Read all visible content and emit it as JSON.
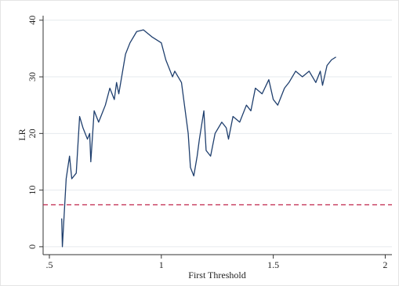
{
  "chart_data": {
    "type": "line",
    "x_label": "First Threshold",
    "y_label": "LR",
    "x": [
      0.555,
      0.558,
      0.575,
      0.59,
      0.6,
      0.62,
      0.635,
      0.65,
      0.67,
      0.68,
      0.685,
      0.7,
      0.72,
      0.75,
      0.77,
      0.79,
      0.8,
      0.81,
      0.84,
      0.86,
      0.89,
      0.92,
      0.96,
      1.0,
      1.02,
      1.05,
      1.06,
      1.09,
      1.1,
      1.12,
      1.13,
      1.145,
      1.16,
      1.17,
      1.19,
      1.2,
      1.22,
      1.24,
      1.27,
      1.29,
      1.3,
      1.32,
      1.35,
      1.38,
      1.4,
      1.42,
      1.45,
      1.48,
      1.5,
      1.52,
      1.55,
      1.57,
      1.6,
      1.63,
      1.66,
      1.69,
      1.71,
      1.72,
      1.74,
      1.76,
      1.78
    ],
    "series": [
      {
        "name": "LR",
        "color": "#1f3f6e",
        "values": [
          5,
          0,
          12,
          16,
          12,
          13,
          23,
          21,
          19,
          20,
          15,
          24,
          22,
          25,
          28,
          26,
          29,
          27,
          34,
          36,
          38,
          38.3,
          37,
          36,
          33,
          30,
          31,
          29,
          26,
          20,
          14,
          12.5,
          16,
          19,
          24,
          17,
          16,
          20,
          22,
          21,
          19,
          23,
          22,
          25,
          24,
          28,
          27,
          29.5,
          26,
          25,
          28,
          29,
          31,
          30,
          31,
          29,
          31,
          28.5,
          32,
          33,
          33.5
        ]
      }
    ],
    "reference_line": {
      "value": 7.4,
      "color": "#c0244a"
    },
    "xlim": [
      0.472,
      2.03
    ],
    "ylim": [
      -1.4,
      40.8
    ],
    "xticks": [
      {
        "value": 0.5,
        "label": ".5"
      },
      1,
      1.5,
      2
    ],
    "yticks": [
      0,
      10,
      20,
      30,
      40
    ],
    "grid": true
  }
}
